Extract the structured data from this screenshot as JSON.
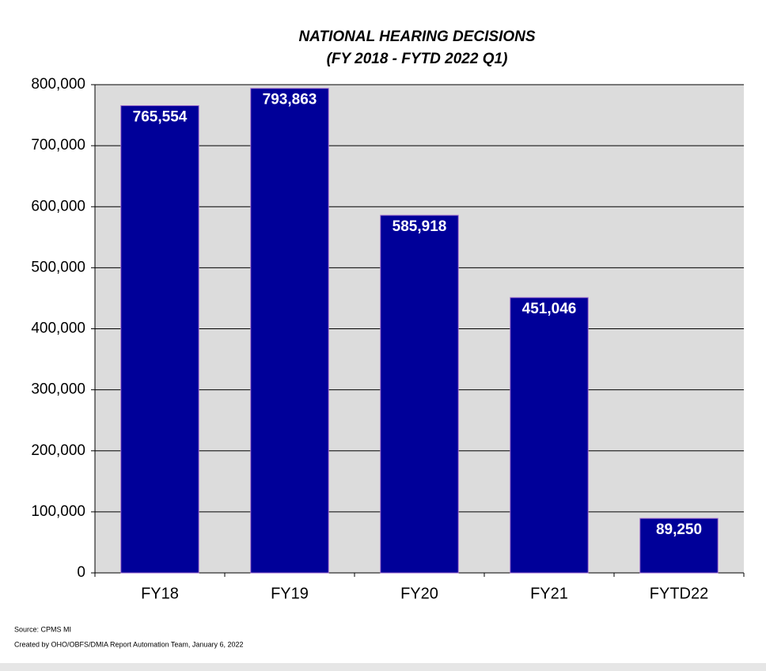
{
  "chart_data": {
    "type": "bar",
    "title": "NATIONAL HEARING DECISIONS",
    "subtitle": "(FY 2018 - FYTD 2022 Q1)",
    "categories": [
      "FY18",
      "FY19",
      "FY20",
      "FY21",
      "FYTD22"
    ],
    "values": [
      765554,
      793863,
      585918,
      451046,
      89250
    ],
    "value_labels": [
      "765,554",
      "793,863",
      "585,918",
      "451,046",
      "89,250"
    ],
    "color": "#000099",
    "ylim": [
      0,
      800000
    ],
    "yticks": [
      0,
      {
        "value": 100000,
        "label": "100,000"
      },
      {
        "value": 200000,
        "label": "200,000"
      },
      {
        "value": 300000,
        "label": "300,000"
      },
      {
        "value": 400000,
        "label": "400,000"
      },
      {
        "value": 500000,
        "label": "500,000"
      },
      {
        "value": 600000,
        "label": "600,000"
      },
      {
        "value": 700000,
        "label": "700,000"
      },
      {
        "value": 800000,
        "label": "800,000"
      }
    ],
    "grid": true,
    "notes": [
      "Source: CPMS MI",
      "Created by OHO/OBFS/DMIA Report Automation Team, January  6, 2022"
    ]
  }
}
